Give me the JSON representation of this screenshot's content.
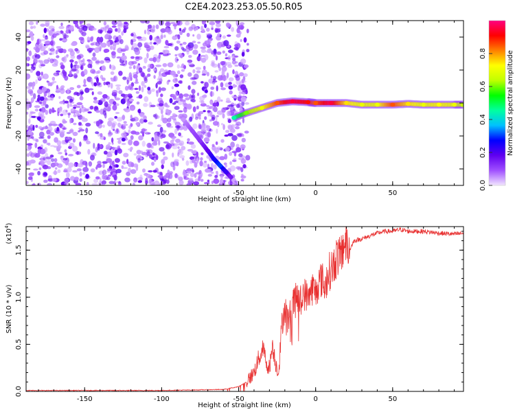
{
  "figure": {
    "title": "C2E4.2023.253.05.50.R05"
  },
  "chart_data": [
    {
      "type": "heatmap",
      "xlabel": "Height of straight line (km)",
      "ylabel": "Frequency (Hz)",
      "xlim": [
        -188,
        96
      ],
      "ylim": [
        -50,
        50
      ],
      "xticks": [
        -150,
        -100,
        -50,
        0,
        50
      ],
      "yticks": [
        -40,
        -20,
        0,
        20,
        40
      ],
      "colorbar": {
        "label": "Normalized spectral amplitude",
        "range": [
          0,
          1
        ],
        "ticks": [
          "0.0",
          "0.2",
          "0.4",
          "0.6",
          "0.8"
        ],
        "colors": [
          "#f2e6ff",
          "#a050ff",
          "#6000f0",
          "#0000ff",
          "#00c0ff",
          "#00ffa0",
          "#00ff00",
          "#c0ff00",
          "#ffff00",
          "#ff8000",
          "#ff0000",
          "#ff0080"
        ]
      },
      "noise_region_x": [
        -188,
        -50
      ],
      "signal_track": {
        "x": [
          -53,
          -45,
          -35,
          -25,
          -15,
          -5,
          0,
          10,
          20,
          30,
          40,
          50,
          60,
          70,
          80,
          90,
          96
        ],
        "y": [
          -9,
          -6,
          -3,
          0,
          1,
          0.5,
          0,
          0,
          0,
          -1,
          -1,
          -1,
          -0.5,
          -1,
          -1,
          -1,
          -1
        ],
        "amplitude": [
          0.45,
          0.6,
          0.7,
          0.85,
          0.95,
          0.9,
          0.85,
          0.95,
          0.75,
          0.7,
          0.7,
          0.85,
          0.75,
          0.7,
          0.72,
          0.7,
          0.65
        ]
      },
      "descending_track": {
        "x": [
          -86,
          -80,
          -75,
          -70,
          -66,
          -62,
          -58,
          -55
        ],
        "y": [
          -10,
          -17,
          -23,
          -29,
          -34,
          -38,
          -42,
          -45
        ],
        "amplitude": [
          0.05,
          0.1,
          0.12,
          0.18,
          0.25,
          0.3,
          0.22,
          0.15
        ]
      }
    },
    {
      "type": "line",
      "xlabel": "Height of straight line (km)",
      "ylabel": "SNR (10 * v/v)",
      "y_multiplier": "(x10",
      "y_multiplier_exponent": "4",
      "y_multiplier_close": ")",
      "xlim": [
        -188,
        96
      ],
      "ylim": [
        0,
        1.75
      ],
      "xticks": [
        -150,
        -100,
        -50,
        0,
        50
      ],
      "yticks": [
        "0.0",
        "0.5",
        "1.0",
        "1.5"
      ],
      "ytick_values": [
        0,
        0.5,
        1.0,
        1.5
      ],
      "color": "#e83030",
      "x": [
        -188,
        -150,
        -100,
        -60,
        -50,
        -45,
        -40,
        -37,
        -34,
        -32,
        -30,
        -28,
        -26,
        -24,
        -22,
        -20,
        -18,
        -16,
        -14,
        -12,
        -10,
        -8,
        -5,
        -2,
        0,
        2,
        4,
        6,
        8,
        10,
        12,
        14,
        16,
        18,
        20,
        22,
        25,
        30,
        35,
        40,
        45,
        50,
        55,
        60,
        70,
        80,
        90,
        96
      ],
      "y": [
        0.01,
        0.01,
        0.01,
        0.02,
        0.05,
        0.1,
        0.2,
        0.35,
        0.45,
        0.3,
        0.25,
        0.5,
        0.3,
        0.2,
        0.7,
        0.9,
        0.75,
        0.85,
        0.95,
        1.0,
        0.95,
        1.05,
        1.0,
        1.1,
        1.05,
        1.15,
        1.2,
        1.1,
        1.25,
        1.3,
        1.35,
        1.45,
        1.4,
        1.55,
        1.6,
        1.5,
        1.6,
        1.62,
        1.65,
        1.68,
        1.7,
        1.7,
        1.72,
        1.7,
        1.7,
        1.68,
        1.67,
        1.68
      ]
    }
  ]
}
